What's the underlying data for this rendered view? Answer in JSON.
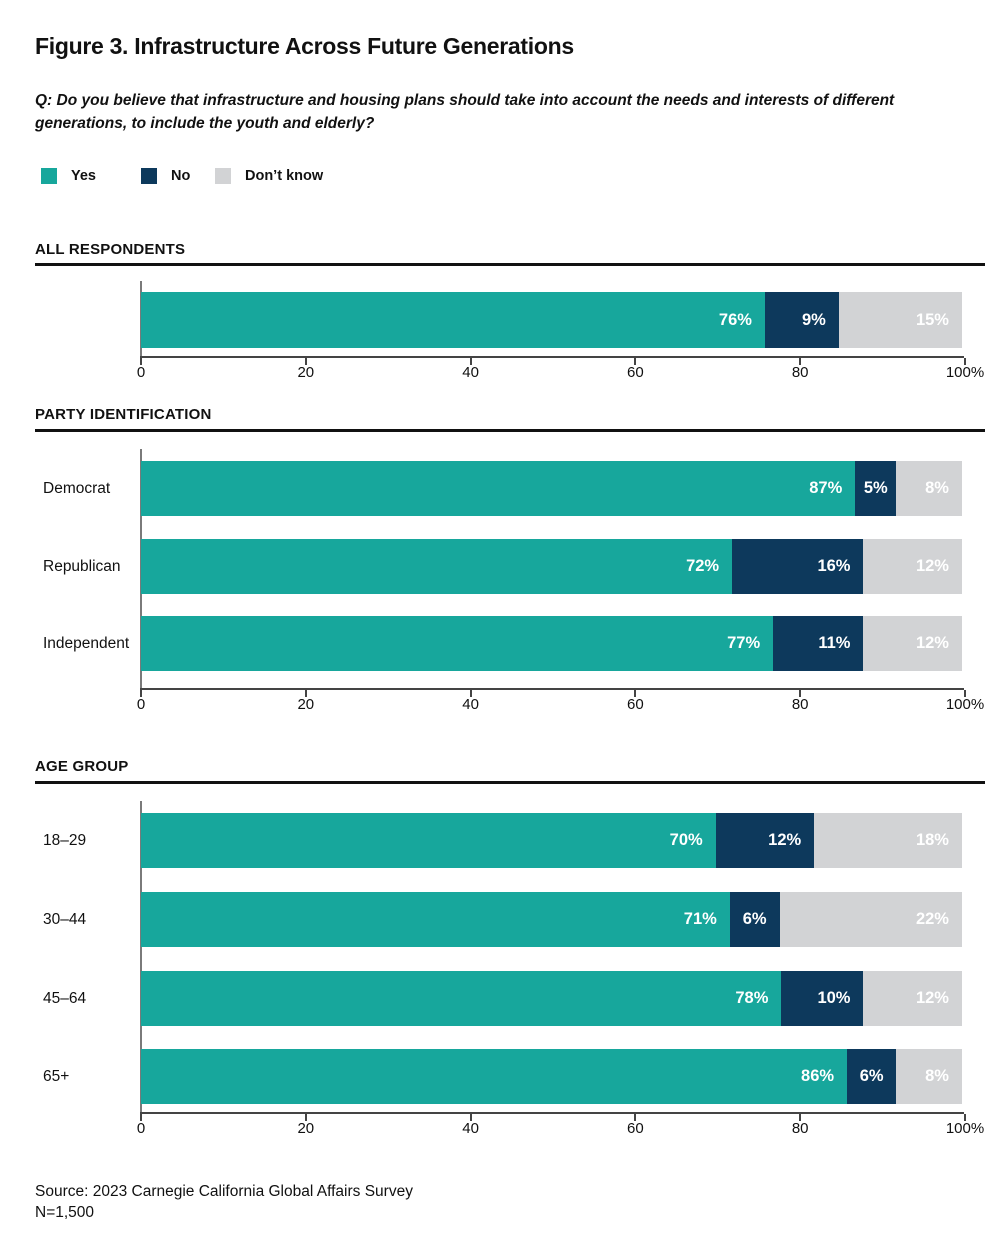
{
  "page": {
    "title": "Figure 3. Infrastructure Across Future Generations",
    "question": "Q: Do you believe that infrastructure and housing plans should take into account the needs and interests of different generations, to include the youth and elderly?",
    "source_line1": "Source: 2023 Carnegie California Global Affairs Survey",
    "source_line2": "N=1,500"
  },
  "legend": {
    "items": [
      {
        "label": "Yes",
        "color": "#17A79C"
      },
      {
        "label": "No",
        "color": "#0D395C"
      },
      {
        "label": "Don’t know",
        "color": "#D2D3D5"
      }
    ]
  },
  "axis": {
    "tick_labels": [
      "0",
      "20",
      "40",
      "60",
      "80",
      "100%"
    ],
    "tick_values": [
      0,
      20,
      40,
      60,
      80,
      100
    ],
    "range": [
      0,
      100
    ]
  },
  "colors": {
    "yes": "#17A79C",
    "no": "#0D395C",
    "dont_know": "#D2D3D5"
  },
  "chart_data": {
    "type": "bar",
    "orientation": "horizontal",
    "stacked": true,
    "unit": "%",
    "series_names": [
      "Yes",
      "No",
      "Don't know"
    ],
    "xlim": [
      0,
      100
    ],
    "grid": false,
    "legend_position": "top-left",
    "sections": [
      {
        "header": "ALL RESPONDENTS",
        "rows": [
          {
            "label": "",
            "values": [
              76,
              9,
              15
            ]
          }
        ]
      },
      {
        "header": "PARTY IDENTIFICATION",
        "rows": [
          {
            "label": "Democrat",
            "values": [
              87,
              5,
              8
            ]
          },
          {
            "label": "Republican",
            "values": [
              72,
              16,
              12
            ]
          },
          {
            "label": "Independent",
            "values": [
              77,
              11,
              12
            ]
          }
        ]
      },
      {
        "header": "AGE GROUP",
        "rows": [
          {
            "label": "18–29",
            "values": [
              70,
              12,
              18
            ]
          },
          {
            "label": "30–44",
            "values": [
              71,
              6,
              22
            ]
          },
          {
            "label": "45–64",
            "values": [
              78,
              10,
              12
            ]
          },
          {
            "label": "65+",
            "values": [
              86,
              6,
              8
            ]
          }
        ]
      }
    ]
  }
}
